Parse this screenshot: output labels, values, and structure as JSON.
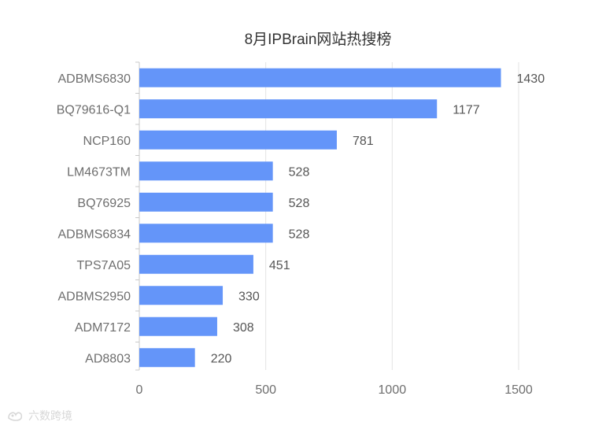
{
  "chart_data": {
    "type": "bar",
    "orientation": "horizontal",
    "title": "8月IPBrain网站热搜榜",
    "categories": [
      "ADBMS6830",
      "BQ79616-Q1",
      "NCP160",
      "LM4673TM",
      "BQ76925",
      "ADBMS6834",
      "TPS7A05",
      "ADBMS2950",
      "ADM7172",
      "AD8803"
    ],
    "values": [
      1430,
      1177,
      781,
      528,
      528,
      528,
      451,
      330,
      308,
      220
    ],
    "xlim": [
      0,
      1500
    ],
    "xticks": [
      "0",
      "500",
      "1000",
      "1500"
    ],
    "grid": true,
    "data_labels": true,
    "colors": {
      "bar": "#6495f9",
      "grid": "#e3e3e3",
      "axis": "#c9c9c9",
      "label": "#555555",
      "category": "#6e6e6e",
      "title": "#333333"
    }
  },
  "watermark": {
    "text": "六数跨境",
    "icon": "logo-icon"
  }
}
